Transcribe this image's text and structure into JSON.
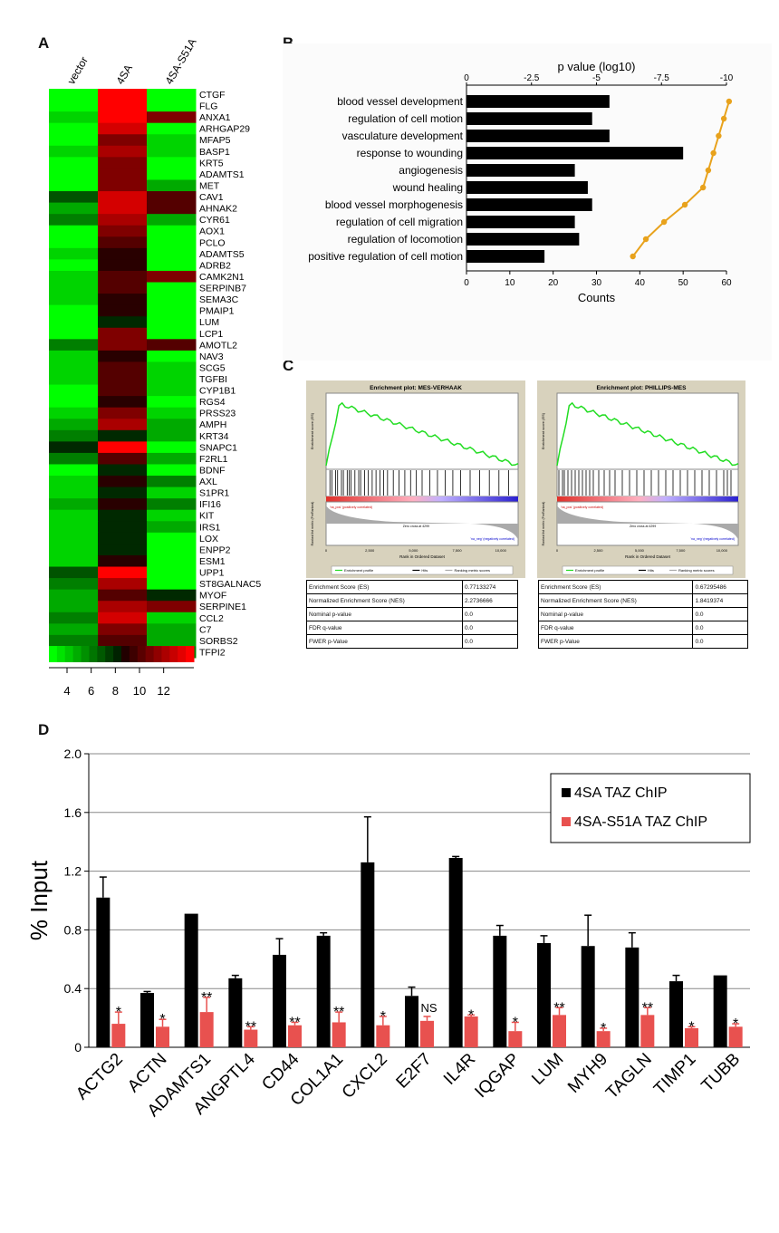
{
  "panels": {
    "a": "A",
    "b": "B",
    "c": "C",
    "d": "D"
  },
  "heatmap": {
    "columns": [
      "vector",
      "4SA",
      "4SA-S51A"
    ],
    "genes": [
      "CTGF",
      "FLG",
      "ANXA1",
      "ARHGAP29",
      "MFAP5",
      "BASP1",
      "KRT5",
      "ADAMTS1",
      "MET",
      "CAV1",
      "AHNAK2",
      "CYR61",
      "AOX1",
      "PCLO",
      "ADAMTS5",
      "ADRB2",
      "CAMK2N1",
      "SERPINB7",
      "SEMA3C",
      "PMAIP1",
      "LUM",
      "LCP1",
      "AMOTL2",
      "NAV3",
      "SCG5",
      "TGFBI",
      "CYP1B1",
      "RGS4",
      "PRSS23",
      "AMPH",
      "KRT34",
      "SNAPC1",
      "F2RL1",
      "BDNF",
      "AXL",
      "S1PR1",
      "IFI16",
      "KIT",
      "IRS1",
      "LOX",
      "ENPP2",
      "ESM1",
      "UPP1",
      "ST8GALNAC5",
      "MYOF",
      "SERPINE1",
      "CCL2",
      "C7",
      "SORBS2",
      "TFPI2"
    ],
    "values": [
      [
        3,
        14,
        3
      ],
      [
        3,
        14,
        3
      ],
      [
        4,
        14,
        11
      ],
      [
        3,
        13,
        3
      ],
      [
        3,
        11,
        4
      ],
      [
        4,
        12,
        4
      ],
      [
        3,
        11,
        3
      ],
      [
        3,
        11,
        3
      ],
      [
        3,
        11,
        5
      ],
      [
        7,
        13,
        10
      ],
      [
        5,
        13,
        10
      ],
      [
        6,
        12,
        5
      ],
      [
        3,
        11,
        3
      ],
      [
        3,
        10,
        3
      ],
      [
        4,
        9,
        3
      ],
      [
        3,
        9,
        3
      ],
      [
        4,
        10,
        11
      ],
      [
        4,
        10,
        3
      ],
      [
        4,
        9,
        3
      ],
      [
        3,
        9,
        3
      ],
      [
        3,
        8,
        3
      ],
      [
        3,
        11,
        3
      ],
      [
        6,
        11,
        10
      ],
      [
        4,
        9,
        3
      ],
      [
        4,
        10,
        4
      ],
      [
        4,
        10,
        4
      ],
      [
        3,
        10,
        4
      ],
      [
        3,
        9,
        3
      ],
      [
        4,
        11,
        4
      ],
      [
        5,
        12,
        5
      ],
      [
        6,
        8,
        5
      ],
      [
        8,
        14,
        3
      ],
      [
        6,
        10,
        5
      ],
      [
        3,
        8,
        3
      ],
      [
        4,
        9,
        6
      ],
      [
        4,
        8,
        4
      ],
      [
        5,
        9,
        6
      ],
      [
        4,
        8,
        4
      ],
      [
        4,
        8,
        5
      ],
      [
        4,
        8,
        3
      ],
      [
        4,
        8,
        3
      ],
      [
        4,
        9,
        3
      ],
      [
        7,
        14,
        3
      ],
      [
        6,
        12,
        3
      ],
      [
        5,
        10,
        8
      ],
      [
        5,
        12,
        11
      ],
      [
        6,
        13,
        4
      ],
      [
        5,
        11,
        5
      ],
      [
        6,
        10,
        5
      ],
      [
        4,
        11,
        6
      ]
    ],
    "scale": {
      "ticks": [
        4,
        6,
        8,
        10,
        12
      ],
      "min": 3,
      "max": 14
    }
  },
  "go_chart": {
    "categories": [
      "blood vessel development",
      "regulation of cell motion",
      "vasculature development",
      "response to wounding",
      "angiogenesis",
      "wound healing",
      "blood vessel morphogenesis",
      "regulation of cell migration",
      "regulation of locomotion",
      "positive regulation of cell motion"
    ],
    "counts": [
      33,
      29,
      33,
      50,
      25,
      28,
      29,
      25,
      26,
      18
    ],
    "log_p": [
      -10.1,
      -9.9,
      -9.7,
      -9.5,
      -9.3,
      -9.1,
      -8.4,
      -7.6,
      -6.9,
      -6.4
    ],
    "top_axis_label": "p value (log10)",
    "top_ticks": [
      "0",
      "-2.5",
      "-5",
      "-7.5",
      "-10"
    ],
    "top_range": [
      0,
      -10
    ],
    "bottom_axis_label": "Counts",
    "bottom_ticks": [
      0,
      10,
      20,
      30,
      40,
      50,
      60
    ],
    "bottom_range": [
      0,
      60
    ],
    "bar_color": "#000000",
    "line_color": "#e8a21c"
  },
  "gsea": [
    {
      "title": "Enrichment plot: MES-VERHAAK",
      "es_axis": "Enrichment score (ES)",
      "metric_axis": "Ranked list metric (PreRanked)",
      "x_axis": "Rank in Ordered Dataset",
      "ticks": [
        "0",
        "2,500",
        "5,000",
        "7,500",
        "10,000"
      ],
      "pos_label": "'na_pos' (positively correlated)",
      "neg_label": "'na_neg' (negatively correlated)",
      "zero_cross": "Zero cross at 4299",
      "legend": [
        "Enrichment profile",
        "Hits",
        "Ranking metric scores"
      ],
      "table": [
        [
          "Enrichment Score (ES)",
          "0.77133274"
        ],
        [
          "Normalized Enrichment Score (NES)",
          "2.2736666"
        ],
        [
          "Nominal p-value",
          "0.0"
        ],
        [
          "FDR q-value",
          "0.0"
        ],
        [
          "FWER p-Value",
          "0.0"
        ]
      ],
      "hits": [
        0.02,
        0.03,
        0.05,
        0.06,
        0.08,
        0.09,
        0.11,
        0.12,
        0.13,
        0.15,
        0.17,
        0.18,
        0.2,
        0.22,
        0.24,
        0.26,
        0.28,
        0.3,
        0.32,
        0.35,
        0.38,
        0.41,
        0.44,
        0.47,
        0.5,
        0.54,
        0.58,
        0.62,
        0.66,
        0.7,
        0.75,
        0.8,
        0.85,
        0.9,
        0.95
      ]
    },
    {
      "title": "Enrichment plot: PHILLIPS-MES",
      "es_axis": "Enrichment score (ES)",
      "metric_axis": "Ranked list metric (PreRanked)",
      "x_axis": "Rank in Ordered Dataset",
      "ticks": [
        "0",
        "2,500",
        "5,000",
        "7,500",
        "10,000"
      ],
      "pos_label": "'na_pos' (positively correlated)",
      "neg_label": "'na_neg' (negatively correlated)",
      "zero_cross": "Zero cross at 4299",
      "legend": [
        "Enrichment profile",
        "Hits",
        "Ranking metric scores"
      ],
      "table": [
        [
          "Enrichment Score (ES)",
          "0.67295486"
        ],
        [
          "Normalized Enrichment Score (NES)",
          "1.8419374"
        ],
        [
          "Nominal p-value",
          "0.0"
        ],
        [
          "FDR q-value",
          "0.0"
        ],
        [
          "FWER p-Value",
          "0.0"
        ]
      ],
      "hits": [
        0.01,
        0.03,
        0.04,
        0.06,
        0.08,
        0.1,
        0.12,
        0.14,
        0.16,
        0.18,
        0.2,
        0.23,
        0.26,
        0.29,
        0.32,
        0.36,
        0.4,
        0.44,
        0.48,
        0.52,
        0.56,
        0.6,
        0.64,
        0.68,
        0.72,
        0.76,
        0.8,
        0.84,
        0.88,
        0.92,
        0.94,
        0.96
      ]
    }
  ],
  "chart_data": {
    "type": "bar",
    "ylabel": "% Input",
    "ylim": [
      0,
      2.0
    ],
    "yticks": [
      "0",
      "0.4",
      "0.8",
      "1.2",
      "1.6",
      "2.0"
    ],
    "grid": true,
    "legend_position": "top-right",
    "categories": [
      "ACTG2",
      "ACTN",
      "ADAMTS1",
      "ANGPTL4",
      "CD44",
      "COL1A1",
      "CXCL2",
      "E2F7",
      "IL4R",
      "IQGAP",
      "LUM",
      "MYH9",
      "TAGLN",
      "TIMP1",
      "TUBB"
    ],
    "series": [
      {
        "name": "4SA TAZ ChIP",
        "color": "#000000",
        "values": [
          1.02,
          0.37,
          0.91,
          0.47,
          0.63,
          0.76,
          1.26,
          0.35,
          1.29,
          0.76,
          0.71,
          0.69,
          0.68,
          0.45,
          0.49
        ],
        "errors": [
          0.14,
          0.01,
          0.0,
          0.02,
          0.11,
          0.02,
          0.31,
          0.06,
          0.01,
          0.07,
          0.05,
          0.21,
          0.1,
          0.04,
          0.0
        ]
      },
      {
        "name": "4SA-S51A TAZ ChIP",
        "color": "#e8514f",
        "values": [
          0.16,
          0.14,
          0.24,
          0.12,
          0.15,
          0.17,
          0.15,
          0.18,
          0.21,
          0.11,
          0.22,
          0.11,
          0.22,
          0.13,
          0.14
        ],
        "errors": [
          0.08,
          0.05,
          0.1,
          0.02,
          0.02,
          0.07,
          0.06,
          0.03,
          0.01,
          0.06,
          0.05,
          0.02,
          0.05,
          0.01,
          0.02
        ]
      }
    ],
    "significance": [
      "*",
      "*",
      "**",
      "**",
      "**",
      "**",
      "*",
      "NS",
      "*",
      "*",
      "**",
      "*",
      "**",
      "*",
      "*"
    ]
  }
}
